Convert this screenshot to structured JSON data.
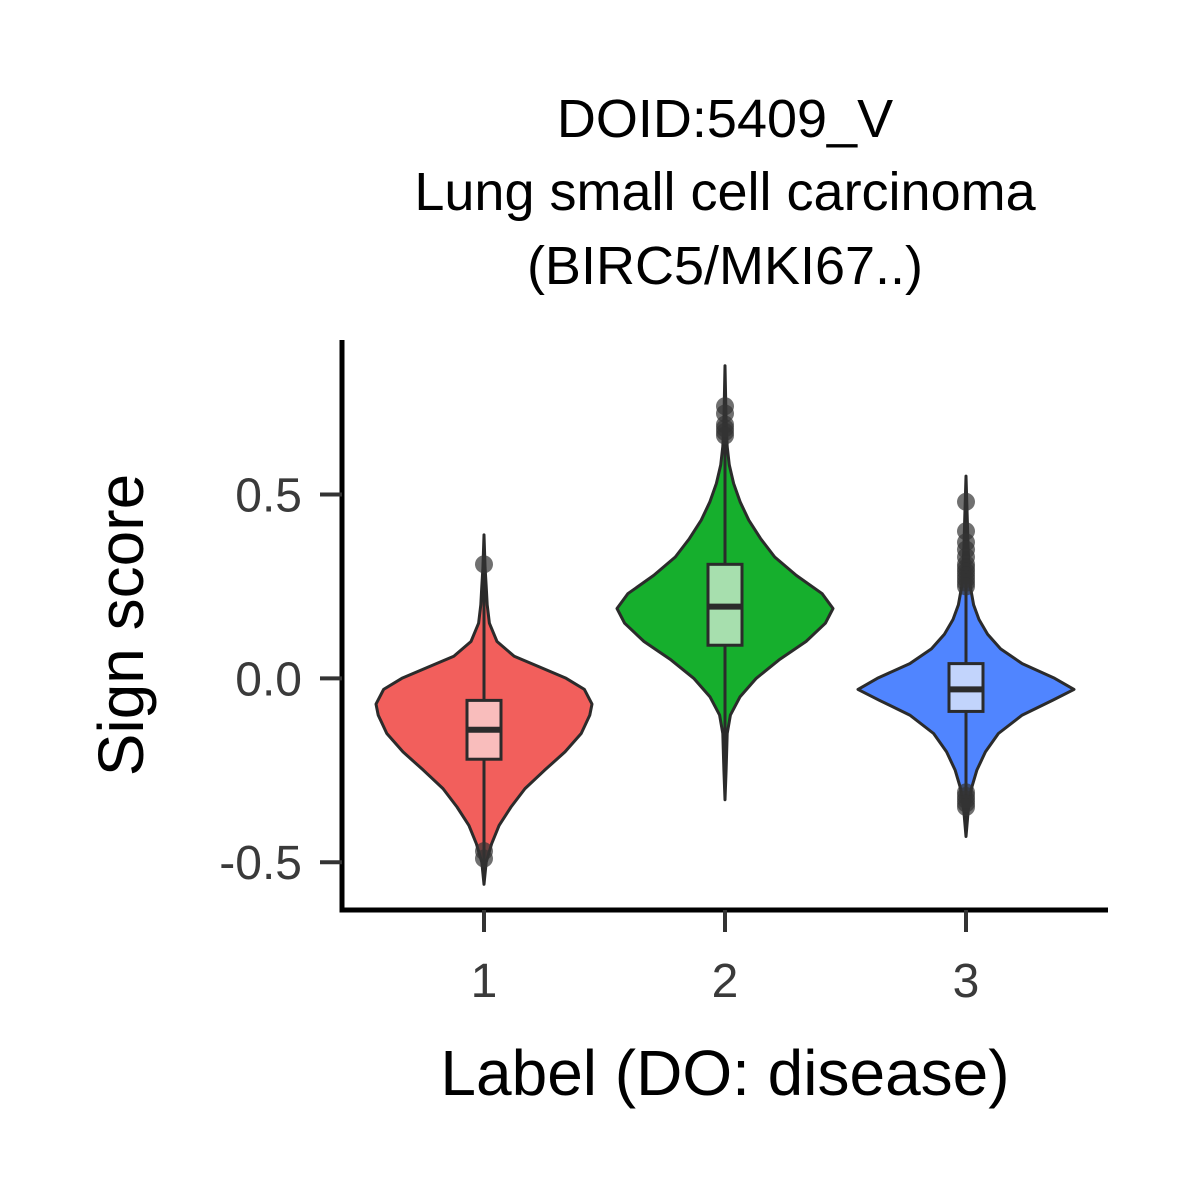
{
  "chart_data": {
    "type": "violin",
    "title_lines": [
      "DOID:5409_V",
      "Lung small cell carcinoma",
      "(BIRC5/MKI67..)"
    ],
    "xlabel": "Label (DO: disease)",
    "ylabel": "Sign score",
    "categories": [
      "1",
      "2",
      "3"
    ],
    "yticks": [
      {
        "value": 0.5,
        "label": "0.5"
      },
      {
        "value": 0.0,
        "label": "0.0"
      },
      {
        "value": -0.5,
        "label": "-0.5"
      }
    ],
    "ylim": [
      -0.63,
      0.92
    ],
    "grid": false,
    "legend": "none",
    "groups": [
      {
        "label": "1",
        "color": "#F25F5C",
        "box_color": "#F9BDBC",
        "min": -0.56,
        "max": 0.39,
        "q1": -0.22,
        "median": -0.14,
        "q3": -0.06,
        "whisker_low": -0.48,
        "whisker_high": 0.12,
        "outliers": [
          0.31,
          -0.47,
          -0.49
        ],
        "density": [
          [
            -0.56,
            0.0
          ],
          [
            -0.5,
            0.02
          ],
          [
            -0.45,
            0.07
          ],
          [
            -0.4,
            0.14
          ],
          [
            -0.35,
            0.25
          ],
          [
            -0.3,
            0.38
          ],
          [
            -0.25,
            0.56
          ],
          [
            -0.2,
            0.75
          ],
          [
            -0.15,
            0.9
          ],
          [
            -0.1,
            0.98
          ],
          [
            -0.07,
            1.0
          ],
          [
            -0.03,
            0.93
          ],
          [
            0.0,
            0.76
          ],
          [
            0.03,
            0.52
          ],
          [
            0.06,
            0.28
          ],
          [
            0.1,
            0.12
          ],
          [
            0.15,
            0.05
          ],
          [
            0.2,
            0.03
          ],
          [
            0.25,
            0.02
          ],
          [
            0.3,
            0.01
          ],
          [
            0.39,
            0.0
          ]
        ]
      },
      {
        "label": "2",
        "color": "#16AF2D",
        "box_color": "#A7DFAE",
        "min": -0.33,
        "max": 0.85,
        "q1": 0.09,
        "median": 0.195,
        "q3": 0.31,
        "whisker_low": -0.2,
        "whisker_high": 0.63,
        "outliers": [
          0.74,
          0.72,
          0.69,
          0.68,
          0.67,
          0.66
        ],
        "density": [
          [
            -0.33,
            0.0
          ],
          [
            -0.25,
            0.01
          ],
          [
            -0.15,
            0.02
          ],
          [
            -0.1,
            0.05
          ],
          [
            -0.05,
            0.14
          ],
          [
            0.0,
            0.29
          ],
          [
            0.05,
            0.5
          ],
          [
            0.1,
            0.75
          ],
          [
            0.15,
            0.93
          ],
          [
            0.19,
            1.0
          ],
          [
            0.23,
            0.9
          ],
          [
            0.28,
            0.66
          ],
          [
            0.33,
            0.46
          ],
          [
            0.38,
            0.33
          ],
          [
            0.43,
            0.22
          ],
          [
            0.48,
            0.14
          ],
          [
            0.53,
            0.08
          ],
          [
            0.58,
            0.04
          ],
          [
            0.63,
            0.02
          ],
          [
            0.7,
            0.01
          ],
          [
            0.85,
            0.0
          ]
        ]
      },
      {
        "label": "3",
        "color": "#5085FF",
        "box_color": "#C2D4FC",
        "min": -0.43,
        "max": 0.55,
        "q1": -0.09,
        "median": -0.03,
        "q3": 0.04,
        "whisker_low": -0.28,
        "whisker_high": 0.24,
        "outliers": [
          0.48,
          0.4,
          0.37,
          0.35,
          0.33,
          0.31,
          0.3,
          0.29,
          0.28,
          0.27,
          0.26,
          0.25,
          -0.31,
          -0.32,
          -0.33,
          -0.34,
          -0.35
        ],
        "density": [
          [
            -0.43,
            0.0
          ],
          [
            -0.36,
            0.02
          ],
          [
            -0.3,
            0.05
          ],
          [
            -0.25,
            0.1
          ],
          [
            -0.2,
            0.18
          ],
          [
            -0.15,
            0.3
          ],
          [
            -0.1,
            0.52
          ],
          [
            -0.06,
            0.8
          ],
          [
            -0.03,
            1.0
          ],
          [
            0.0,
            0.82
          ],
          [
            0.04,
            0.52
          ],
          [
            0.08,
            0.32
          ],
          [
            0.12,
            0.2
          ],
          [
            0.16,
            0.12
          ],
          [
            0.2,
            0.07
          ],
          [
            0.25,
            0.04
          ],
          [
            0.3,
            0.03
          ],
          [
            0.35,
            0.02
          ],
          [
            0.45,
            0.01
          ],
          [
            0.55,
            0.0
          ]
        ]
      }
    ]
  }
}
